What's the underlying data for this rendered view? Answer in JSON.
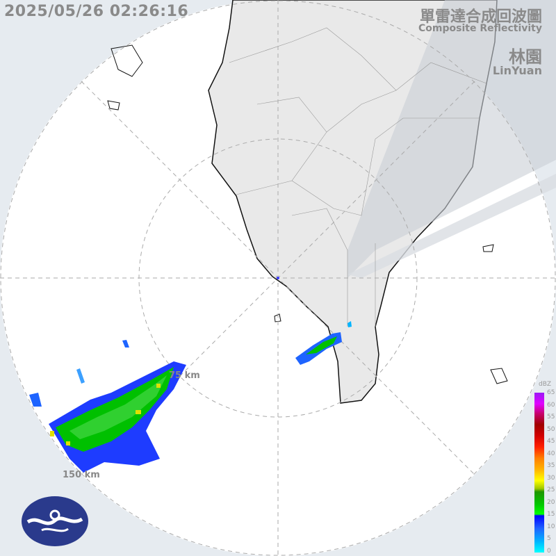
{
  "timestamp": "2025/05/26 02:26:16",
  "title_zh": "單雷達合成回波圖",
  "title_en": "Composite Reflectivity",
  "station_zh": "林園",
  "station_en": "LinYuan",
  "range_rings": [
    "75 km",
    "150 km"
  ],
  "legend": {
    "unit": "dBZ",
    "labels": [
      "65",
      "60",
      "55",
      "50",
      "45",
      "40",
      "35",
      "30",
      "25",
      "20",
      "15",
      "10",
      "5",
      "0"
    ]
  },
  "colors": {
    "land": "#e9e9e9",
    "outside": "#e6ebf0",
    "coverage": "#ffffff",
    "blockage": "#d3d8de"
  },
  "logo": "cwa-logo"
}
